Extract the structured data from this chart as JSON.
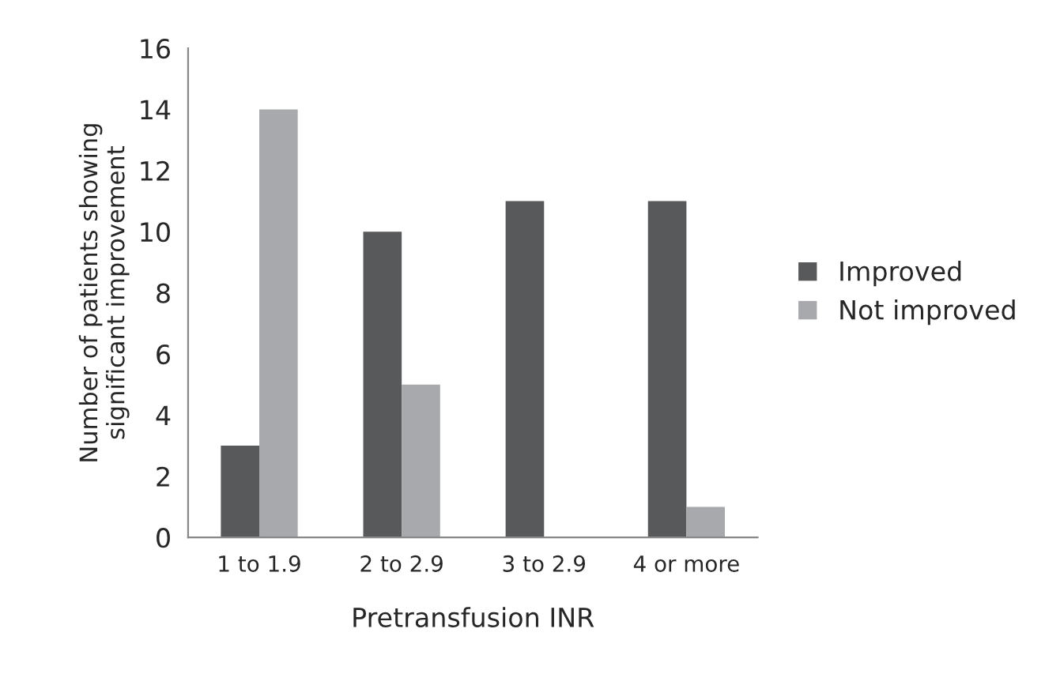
{
  "chart_data": {
    "type": "bar",
    "xlabel": "Pretransfusion INR",
    "ylabel": "Number of patients showing\nsignificant improvement",
    "categories": [
      "1 to 1.9",
      "2 to 2.9",
      "3 to 2.9",
      "4 or more"
    ],
    "series": [
      {
        "name": "Improved",
        "color": "#58595b",
        "values": [
          3,
          10,
          11,
          11
        ]
      },
      {
        "name": "Not improved",
        "color": "#a7a9ac",
        "values": [
          14,
          5,
          0,
          1
        ]
      }
    ],
    "ylim": [
      0,
      16
    ],
    "yticks": [
      0,
      2,
      4,
      6,
      8,
      10,
      12,
      14,
      16
    ],
    "grid": false,
    "legend": "right"
  }
}
